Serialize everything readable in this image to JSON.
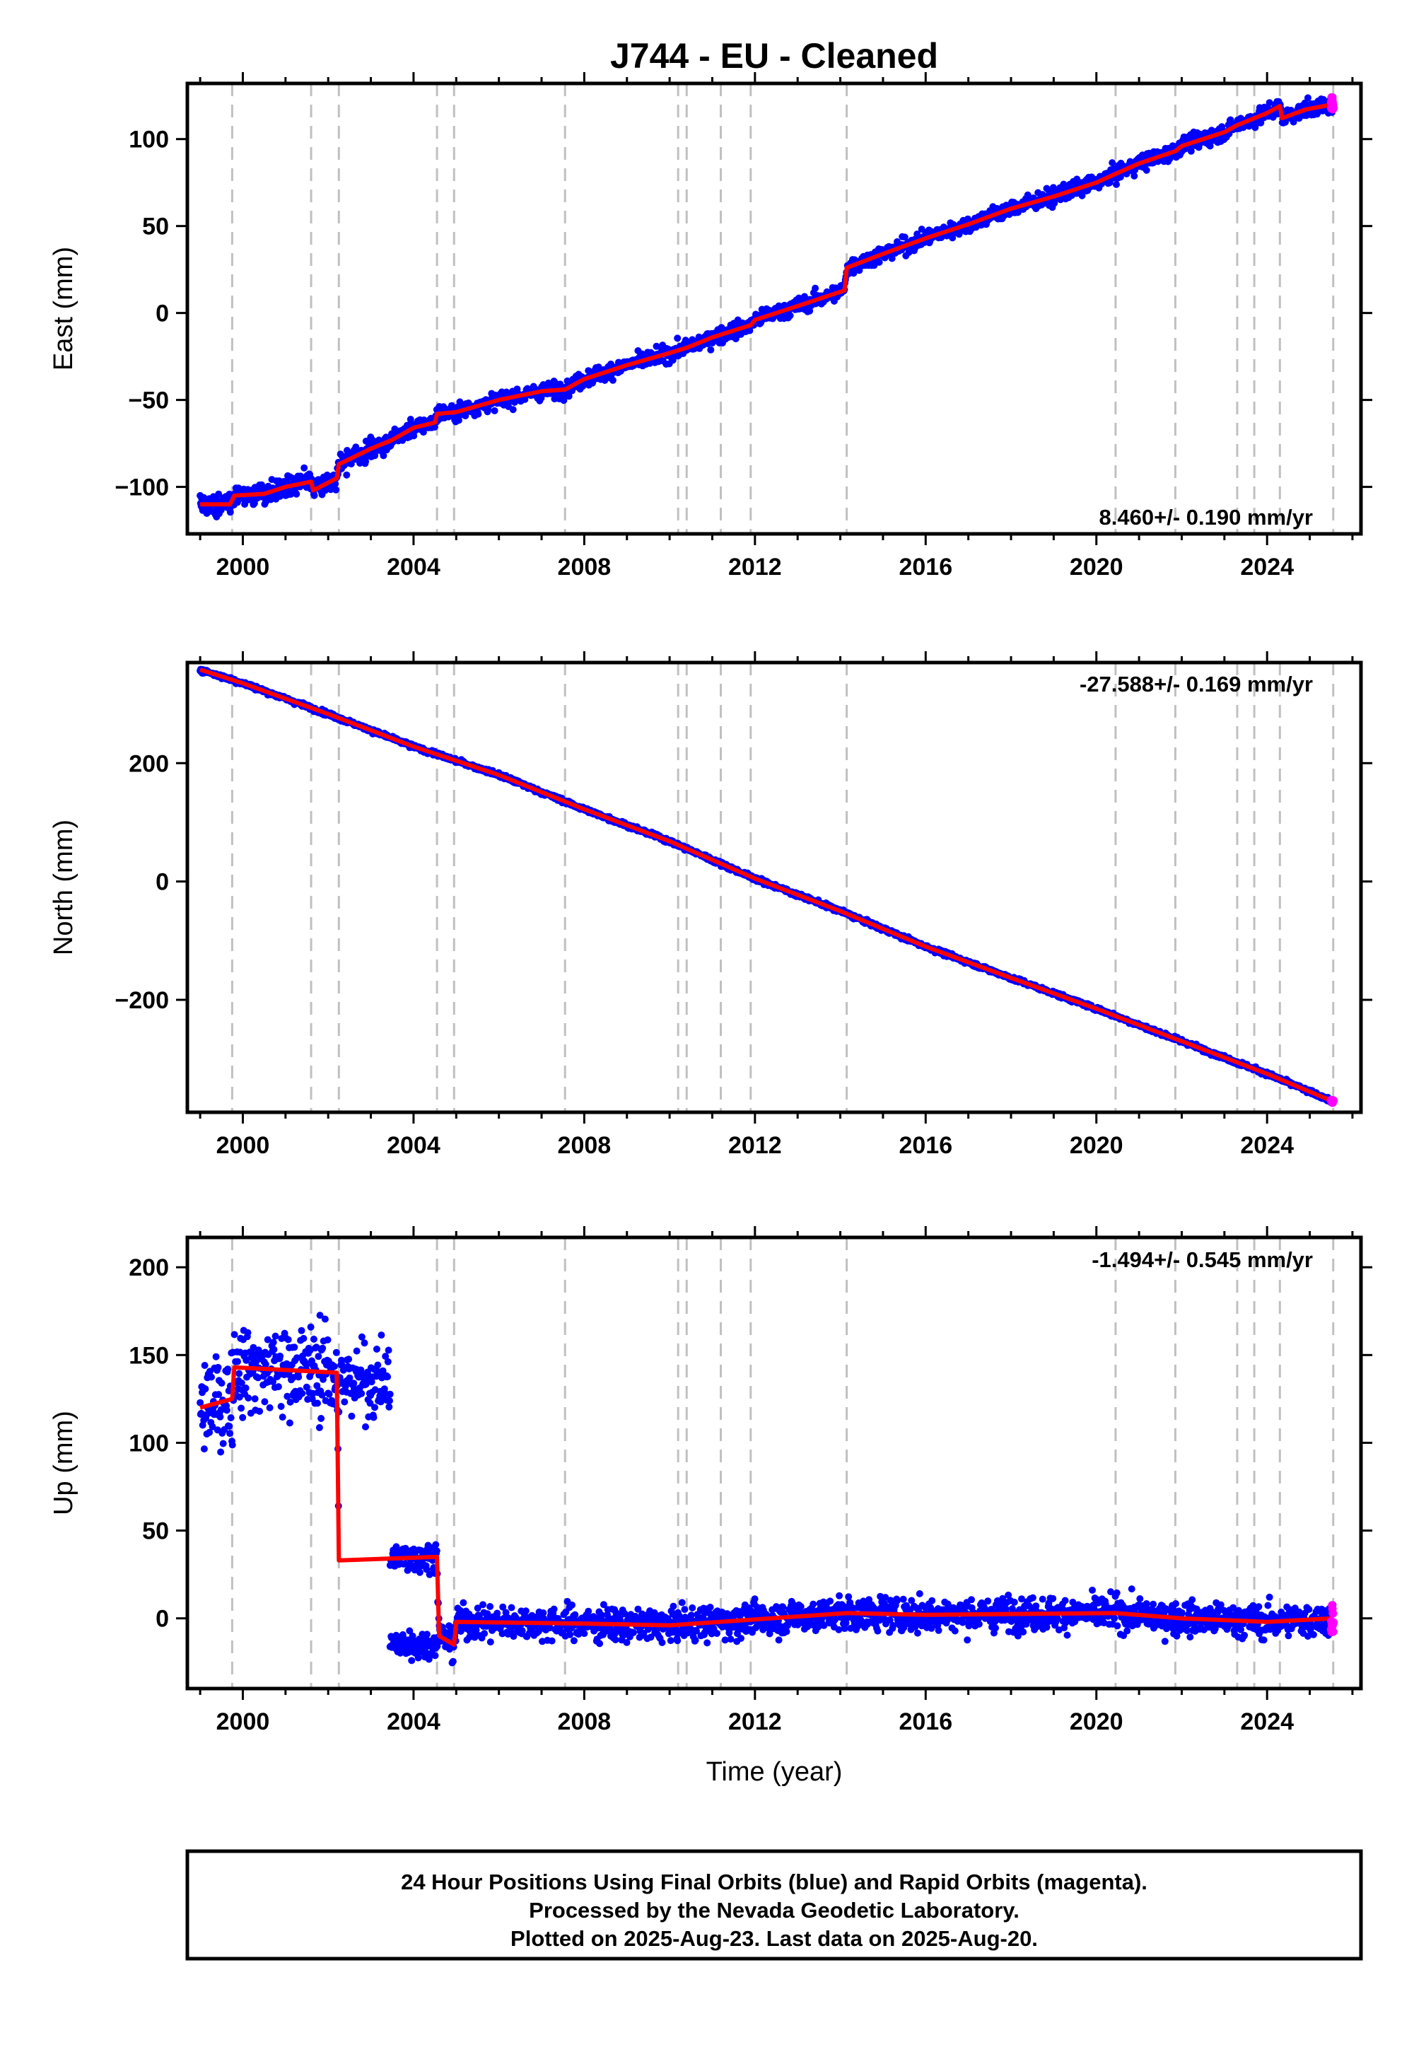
{
  "title": "J744  - EU - Cleaned",
  "xlabel": "Time (year)",
  "x_ticks": [
    "2000",
    "2004",
    "2008",
    "2012",
    "2016",
    "2020",
    "2024"
  ],
  "colors": {
    "final_orbits": "#0000ff",
    "rapid_orbits": "#ff00ff",
    "model": "#ff0000",
    "events": "#c0c0c0"
  },
  "footer": {
    "line1": "24 Hour Positions Using Final Orbits (blue) and Rapid Orbits (magenta).",
    "line2": "Processed by the Nevada Geodetic Laboratory.",
    "line3": "Plotted on 2025-Aug-23. Last data on 2025-Aug-20."
  },
  "chart_data": [
    {
      "type": "scatter",
      "component": "East",
      "ylabel": "East (mm)",
      "rate_text": "8.460+/- 0.190 mm/yr",
      "xlim": [
        1998.7,
        2026.2
      ],
      "ylim": [
        -127,
        132
      ],
      "y_ticks": [
        "100",
        "50",
        "0",
        "−50",
        "−100"
      ],
      "event_lines": [
        1999.75,
        2001.6,
        2002.25,
        2004.55,
        2004.95,
        2007.55,
        2010.2,
        2010.4,
        2011.2,
        2011.9,
        2014.15,
        2020.45,
        2021.85,
        2023.3,
        2023.7,
        2024.3,
        2025.55
      ],
      "series": [
        {
          "values": [
            [
              1999.0,
              -110
            ],
            [
              1999.7,
              -110
            ],
            [
              1999.8,
              -105
            ],
            [
              2000.5,
              -104
            ],
            [
              2001.0,
              -100
            ],
            [
              2001.6,
              -97
            ],
            [
              2001.65,
              -102
            ],
            [
              2002.2,
              -95
            ],
            [
              2002.25,
              -87
            ],
            [
              2003.0,
              -78
            ],
            [
              2003.5,
              -73
            ],
            [
              2004.0,
              -66
            ],
            [
              2004.5,
              -63
            ],
            [
              2004.55,
              -58
            ],
            [
              2005.0,
              -57
            ],
            [
              2006.0,
              -50
            ],
            [
              2007.0,
              -45
            ],
            [
              2007.55,
              -44
            ],
            [
              2008.0,
              -38
            ],
            [
              2009.0,
              -30
            ],
            [
              2010.0,
              -23
            ],
            [
              2010.4,
              -20
            ],
            [
              2011.0,
              -14
            ],
            [
              2011.9,
              -7
            ],
            [
              2012.0,
              -4
            ],
            [
              2013.0,
              4
            ],
            [
              2014.1,
              13
            ],
            [
              2014.15,
              26
            ],
            [
              2015.0,
              34
            ],
            [
              2016.0,
              43
            ],
            [
              2017.0,
              51
            ],
            [
              2018.0,
              60
            ],
            [
              2019.0,
              67
            ],
            [
              2020.0,
              75
            ],
            [
              2020.45,
              80
            ],
            [
              2021.0,
              86
            ],
            [
              2021.85,
              93
            ],
            [
              2022.0,
              96
            ],
            [
              2023.0,
              104
            ],
            [
              2023.3,
              108
            ],
            [
              2023.7,
              112
            ],
            [
              2024.0,
              115
            ],
            [
              2024.3,
              119
            ],
            [
              2024.35,
              112
            ],
            [
              2024.9,
              117
            ],
            [
              2025.55,
              120
            ]
          ]
        }
      ]
    },
    {
      "type": "scatter",
      "component": "North",
      "ylabel": "North (mm)",
      "rate_text": "-27.588+/- 0.169 mm/yr",
      "xlim": [
        1998.7,
        2026.2
      ],
      "ylim": [
        -390,
        370
      ],
      "y_ticks": [
        "200",
        "0",
        "−200"
      ],
      "event_lines": [
        1999.75,
        2001.6,
        2002.25,
        2004.55,
        2004.95,
        2007.55,
        2010.2,
        2010.4,
        2011.2,
        2011.9,
        2014.15,
        2020.45,
        2021.85,
        2023.3,
        2023.7,
        2024.3,
        2025.55
      ],
      "series": [
        {
          "values": [
            [
              1999.0,
              358
            ],
            [
              2000.0,
              335
            ],
            [
              2002.0,
              283
            ],
            [
              2004.0,
              228
            ],
            [
              2006.0,
              180
            ],
            [
              2008.0,
              122
            ],
            [
              2010.0,
              68
            ],
            [
              2012.0,
              5
            ],
            [
              2014.0,
              -50
            ],
            [
              2016.0,
              -110
            ],
            [
              2018.0,
              -163
            ],
            [
              2020.0,
              -215
            ],
            [
              2022.0,
              -270
            ],
            [
              2024.0,
              -325
            ],
            [
              2025.55,
              -372
            ]
          ]
        }
      ]
    },
    {
      "type": "scatter",
      "component": "Up",
      "ylabel": "Up (mm)",
      "rate_text": "-1.494+/- 0.545 mm/yr",
      "xlim": [
        1998.7,
        2026.2
      ],
      "ylim": [
        -40,
        217
      ],
      "y_ticks": [
        "200",
        "150",
        "100",
        "50",
        "0"
      ],
      "event_lines": [
        1999.75,
        2001.6,
        2002.25,
        2004.55,
        2004.95,
        2007.55,
        2010.2,
        2010.4,
        2011.2,
        2011.9,
        2014.15,
        2020.45,
        2021.85,
        2023.3,
        2023.7,
        2024.3,
        2025.55
      ],
      "series": [
        {
          "values": [
            [
              1999.0,
              120
            ],
            [
              1999.75,
              125
            ],
            [
              1999.8,
              143
            ],
            [
              2002.2,
              140
            ],
            [
              2002.25,
              33
            ],
            [
              2004.55,
              35
            ],
            [
              2004.6,
              -10
            ],
            [
              2004.95,
              -15
            ],
            [
              2005.0,
              -2
            ],
            [
              2008.0,
              -3
            ],
            [
              2010.0,
              -4
            ],
            [
              2014.15,
              3
            ],
            [
              2016.0,
              2
            ],
            [
              2020.45,
              3
            ],
            [
              2022.0,
              0
            ],
            [
              2024.0,
              -2
            ],
            [
              2025.55,
              0
            ]
          ]
        }
      ]
    }
  ]
}
